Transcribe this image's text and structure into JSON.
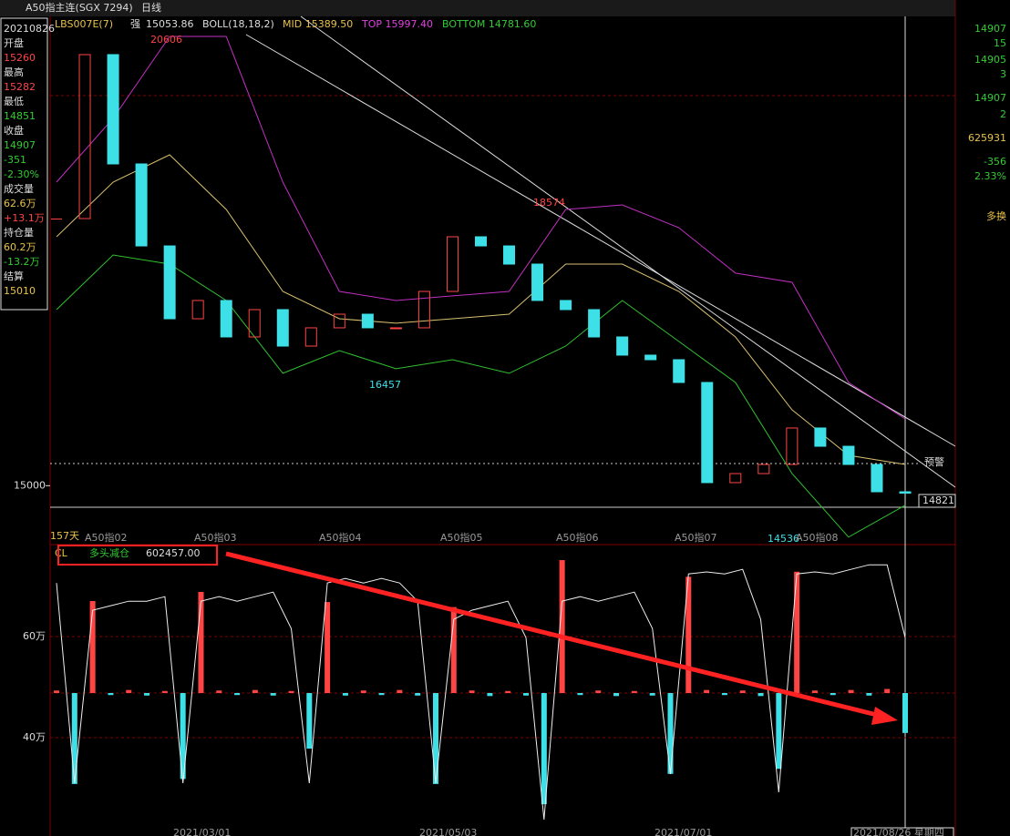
{
  "window": {
    "title": "A50指主连(SGX 7294)",
    "period": "日线"
  },
  "header": {
    "indicator": "LBS007E(7)",
    "strength_label": "强",
    "strength": "15053.86",
    "boll": "BOLL(18,18,2)",
    "mid": "MID 15389.50",
    "top": "TOP 15997.40",
    "bottom": "BOTTOM 14781.60"
  },
  "info_panel": {
    "date": "20210826",
    "rows": [
      {
        "label": "开盘",
        "value": "15260"
      },
      {
        "label": "最高",
        "value": "15282"
      },
      {
        "label": "最低",
        "value": "14851"
      },
      {
        "label": "收盘",
        "value": "14907"
      },
      {
        "label": "-351",
        "value": "-2.30%"
      },
      {
        "label": "成交量",
        "value": "62.6万"
      },
      {
        "label": "+13.1万",
        "value": null
      },
      {
        "label": "持仓量",
        "value": "60.2万"
      },
      {
        "label": "-13.2万",
        "value": null
      },
      {
        "label": "结算",
        "value": "15010"
      }
    ]
  },
  "right_panel": [
    "14907",
    "15",
    "14905",
    "3",
    "14907",
    "2",
    "625931",
    "-356",
    "2.33%",
    "多换"
  ],
  "chart_data": {
    "type": "candlestick",
    "closes": [
      18333,
      20379,
      19015,
      17992,
      17083,
      17311,
      16856,
      17197,
      16742,
      16970,
      17140,
      16970,
      16970,
      17424,
      18106,
      17992,
      17765,
      17311,
      17197,
      16856,
      16629,
      16572,
      16288,
      15038,
      15151,
      15265,
      15720,
      15492,
      15265,
      14924,
      14907
    ],
    "upper": [
      18788,
      19584,
      20606,
      20606,
      18788,
      17424,
      17311,
      17368,
      17424,
      18447,
      18504,
      18220,
      17652,
      17538,
      16288,
      15833
    ],
    "mid": [
      18106,
      18788,
      19129,
      18447,
      17424,
      17083,
      17027,
      17083,
      17140,
      17765,
      17765,
      17424,
      16856,
      15947,
      15379,
      15265
    ],
    "lower": [
      17197,
      17879,
      17765,
      17311,
      16402,
      16686,
      16459,
      16572,
      16402,
      16742,
      17311,
      16800,
      16288,
      15151,
      14358,
      14756
    ],
    "ylim": [
      14265,
      20856
    ],
    "yticks": [
      15000
    ],
    "annotations": [
      "20606",
      "16457",
      "18574",
      "14536",
      "14821",
      "预警"
    ],
    "days": "157天",
    "months": [
      "A50指02",
      "A50指03",
      "A50指04",
      "A50指05",
      "A50指06",
      "A50指07",
      "A50指08"
    ]
  },
  "oi_panel": {
    "name": "CL",
    "label": "多头减仓",
    "value": "602457.00",
    "oi": [
      706000,
      310000,
      652000,
      661000,
      670000,
      670000,
      679000,
      310000,
      670000,
      679000,
      670000,
      679000,
      688000,
      616000,
      310000,
      706000,
      715000,
      706000,
      715000,
      706000,
      670000,
      310000,
      634000,
      652000,
      661000,
      670000,
      598000,
      238000,
      670000,
      679000,
      670000,
      679000,
      688000,
      616000,
      328000,
      724000,
      728000,
      724000,
      733000,
      634000,
      292000,
      724000,
      728000,
      724000,
      733000,
      742000,
      742000,
      598000
    ],
    "change": [
      5000,
      -180000,
      182000,
      -4000,
      6000,
      -5000,
      4000,
      -170000,
      200000,
      5000,
      -4000,
      6000,
      -5000,
      4000,
      -110000,
      180000,
      -5000,
      5000,
      -4000,
      6000,
      -5000,
      -180000,
      170000,
      5000,
      -6000,
      4000,
      -5000,
      -220000,
      263000,
      -4000,
      5000,
      -6000,
      4000,
      -5000,
      -160000,
      230000,
      6000,
      -4000,
      5000,
      -6000,
      -150000,
      240000,
      5000,
      -4000,
      6000,
      -5000,
      8000,
      -79000
    ],
    "ylim": [
      205360,
      778400
    ],
    "change_ylim": [
      -282900,
      290100
    ],
    "yticks": [
      {
        "value": 600000,
        "label": "60万"
      },
      {
        "value": 400000,
        "label": "40万"
      }
    ]
  },
  "x_dates": [
    "2021/03/01",
    "2021/05/03",
    "2021/07/01",
    "2021/08/26 星期四"
  ]
}
